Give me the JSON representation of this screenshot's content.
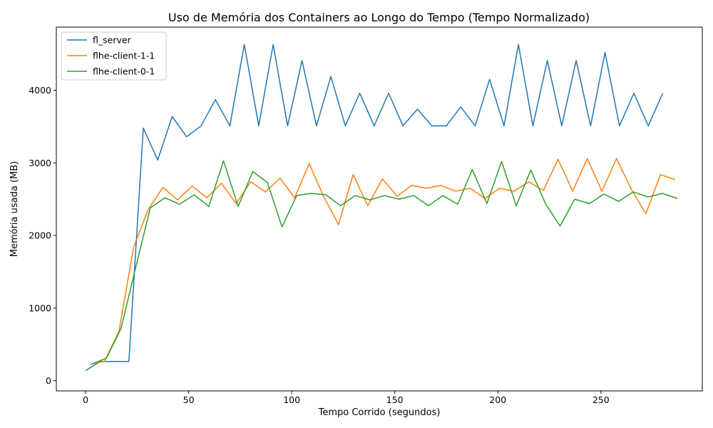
{
  "chart_data": {
    "type": "line",
    "title": "Uso de Memória dos Containers ao Longo do Tempo (Tempo Normalizado)",
    "xlabel": "Tempo Corrido (segundos)",
    "ylabel": "Memória usada (MB)",
    "xlim": [
      -14.2,
      299.2
    ],
    "ylim": [
      -140,
      4870
    ],
    "xticks": [
      0,
      50,
      100,
      150,
      200,
      250
    ],
    "yticks": [
      0,
      1000,
      2000,
      3000,
      4000
    ],
    "grid": false,
    "legend_position": "top-left",
    "series": [
      {
        "name": "fl_server",
        "color": "#1f77b4",
        "x": [
          0,
          7,
          14,
          21,
          28,
          35,
          42,
          49,
          56,
          63,
          70,
          77,
          84,
          91,
          98,
          105,
          112,
          119,
          126,
          133,
          140,
          147,
          154,
          161,
          168,
          175,
          182,
          189,
          196,
          203,
          210,
          217,
          224,
          231,
          238,
          245,
          252,
          259,
          266,
          273,
          280
        ],
        "y": [
          140,
          265,
          265,
          265,
          3480,
          3040,
          3640,
          3360,
          3510,
          3870,
          3510,
          4630,
          3510,
          4630,
          3510,
          4410,
          3510,
          4190,
          3510,
          3960,
          3510,
          3960,
          3510,
          3740,
          3510,
          3510,
          3770,
          3510,
          4150,
          3510,
          4630,
          3510,
          4410,
          3510,
          4410,
          3510,
          4520,
          3510,
          3960,
          3510,
          3960
        ]
      },
      {
        "name": "flhe-client-1-1",
        "color": "#ff7f0e",
        "x": [
          2,
          9.1,
          16.2,
          23.3,
          30.4,
          37.5,
          44.6,
          51.7,
          58.8,
          65.9,
          73,
          80.1,
          87.2,
          94.3,
          101.4,
          108.5,
          115.6,
          122.7,
          129.8,
          136.9,
          144,
          151.1,
          158.2,
          165.3,
          172.4,
          179.5,
          186.6,
          193.7,
          200.8,
          207.9,
          215,
          222.1,
          229.2,
          236.3,
          243.4,
          250.5,
          257.6,
          264.7,
          271.8,
          278.9,
          286
        ],
        "y": [
          230,
          265,
          680,
          1840,
          2360,
          2660,
          2490,
          2680,
          2520,
          2720,
          2440,
          2740,
          2600,
          2790,
          2520,
          2990,
          2530,
          2150,
          2840,
          2410,
          2780,
          2540,
          2690,
          2650,
          2690,
          2610,
          2650,
          2510,
          2650,
          2610,
          2740,
          2620,
          3050,
          2610,
          3060,
          2610,
          3060,
          2640,
          2300,
          2840,
          2770
        ]
      },
      {
        "name": "flhe-client-0-1",
        "color": "#2ca02c",
        "x": [
          3,
          10.1,
          17.2,
          24.3,
          31.4,
          38.5,
          45.6,
          52.7,
          59.8,
          66.9,
          74,
          81.1,
          88.2,
          95.3,
          102.4,
          109.5,
          116.6,
          123.7,
          130.8,
          137.9,
          145,
          152.1,
          159.2,
          166.3,
          173.4,
          180.5,
          187.6,
          194.7,
          201.8,
          208.9,
          216,
          223.1,
          230.2,
          237.3,
          244.4,
          251.5,
          258.6,
          265.7,
          272.8,
          279.9,
          287
        ],
        "y": [
          230,
          310,
          720,
          1560,
          2380,
          2520,
          2430,
          2560,
          2400,
          3030,
          2400,
          2880,
          2730,
          2120,
          2550,
          2580,
          2560,
          2410,
          2550,
          2490,
          2550,
          2500,
          2550,
          2410,
          2550,
          2430,
          2910,
          2440,
          3020,
          2410,
          2900,
          2440,
          2130,
          2500,
          2440,
          2570,
          2470,
          2600,
          2530,
          2580,
          2510
        ]
      }
    ]
  }
}
